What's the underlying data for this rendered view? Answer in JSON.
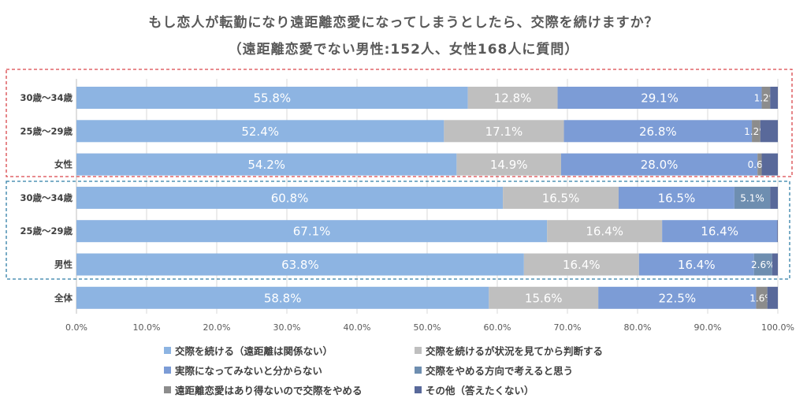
{
  "title_line1": "もし恋人が転勤になり遠距離恋愛になってしまうとしたら、交際を続けますか？",
  "title_line2": "（遠距離恋愛でない男性:152人、女性168人に質問）",
  "chart_data": {
    "type": "bar",
    "orientation": "horizontal",
    "stacked": true,
    "normalized": true,
    "categories": [
      "30歳～34歳",
      "25歳～29歳",
      "女性",
      "30歳～34歳",
      "25歳～29歳",
      "男性",
      "全体"
    ],
    "series": [
      {
        "name": "交際を続ける（遠距離は関係ない）",
        "color": "#8db4e2",
        "values": [
          55.8,
          52.4,
          54.2,
          60.8,
          67.1,
          63.8,
          58.8
        ],
        "labels": [
          "55.8%",
          "52.4%",
          "54.2%",
          "60.8%",
          "67.1%",
          "63.8%",
          "58.8%"
        ]
      },
      {
        "name": "交際を続けるが状況を見てから判断する",
        "color": "#bfbfbf",
        "values": [
          12.8,
          17.1,
          14.9,
          16.5,
          16.4,
          16.4,
          15.6
        ],
        "labels": [
          "12.8%",
          "17.1%",
          "14.9%",
          "16.5%",
          "16.4%",
          "16.4%",
          "15.6%"
        ]
      },
      {
        "name": "実際になってみないと分からない",
        "color": "#7c9cd6",
        "values": [
          29.1,
          26.8,
          28.0,
          16.5,
          16.4,
          16.4,
          22.5
        ],
        "labels": [
          "29.1%",
          "26.8%",
          "28.0%",
          "16.5%",
          "16.4%",
          "16.4%",
          "22.5%"
        ]
      },
      {
        "name": "交際をやめる方向で考えると思う",
        "color": "#6e8eb0",
        "values": [
          0.0,
          0.0,
          0.0,
          5.1,
          0.0,
          2.6,
          0.0
        ],
        "labels": [
          "",
          "",
          "",
          "5.1%",
          "",
          "2.6%",
          ""
        ]
      },
      {
        "name": "遠距離恋愛はあり得ないので交際をやめる",
        "color": "#8c8c8c",
        "values": [
          1.2,
          1.2,
          0.6,
          0.0,
          0.0,
          0.0,
          1.6
        ],
        "labels": [
          "1.2%",
          "1.2%",
          "0.6%",
          "",
          "",
          "",
          "1.6%"
        ]
      },
      {
        "name": "その他（答えたくない）",
        "color": "#59699a",
        "values": [
          1.1,
          2.5,
          2.3,
          1.1,
          0.1,
          0.8,
          1.5
        ],
        "labels": [
          "",
          "",
          "",
          "",
          "",
          "",
          ""
        ]
      }
    ],
    "xlim": [
      0,
      100
    ],
    "xticks": [
      "0.0%",
      "10.0%",
      "20.0%",
      "30.0%",
      "40.0%",
      "50.0%",
      "60.0%",
      "70.0%",
      "80.0%",
      "90.0%",
      "100.0%"
    ],
    "gridlines": "vertical",
    "legend_position": "bottom"
  }
}
